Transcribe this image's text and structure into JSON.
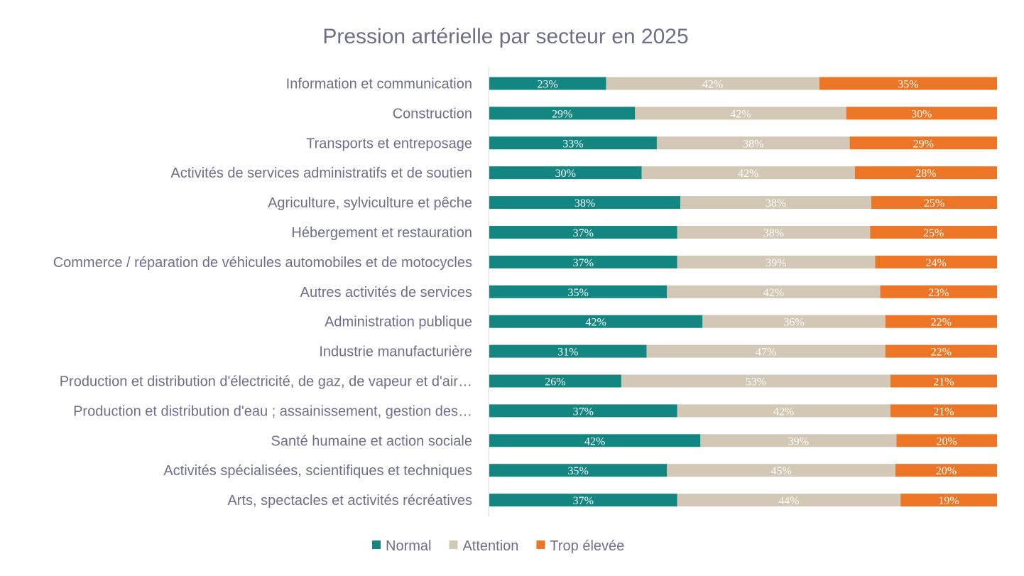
{
  "chart_data": {
    "type": "bar",
    "orientation": "horizontal",
    "stacked": "100%",
    "title": "Pression artérielle par secteur en 2025",
    "categories": [
      "Information et communication",
      "Construction",
      "Transports et entreposage",
      "Activités de services administratifs et de soutien",
      "Agriculture, sylviculture et pêche",
      "Hébergement et restauration",
      "Commerce / réparation de véhicules automobiles et de motocycles",
      "Autres activités de services",
      "Administration publique",
      "Industrie manufacturière",
      "Production et distribution d'électricité, de gaz, de vapeur et d'air…",
      "Production et distribution d'eau ; assainissement, gestion des…",
      "Santé humaine et action sociale",
      "Activités spécialisées, scientifiques et techniques",
      "Arts, spectacles et activités récréatives"
    ],
    "series": [
      {
        "name": "Normal",
        "color": "#138681",
        "values": [
          23,
          29,
          33,
          30,
          38,
          37,
          37,
          35,
          42,
          31,
          26,
          37,
          42,
          35,
          37
        ]
      },
      {
        "name": "Attention",
        "color": "#d3c8b5",
        "values": [
          42,
          42,
          38,
          42,
          38,
          38,
          39,
          42,
          36,
          47,
          53,
          42,
          39,
          45,
          44
        ]
      },
      {
        "name": "Trop élevée",
        "color": "#ec7625",
        "values": [
          35,
          30,
          29,
          28,
          25,
          25,
          24,
          23,
          22,
          22,
          21,
          21,
          20,
          20,
          19
        ]
      }
    ],
    "value_suffix": "%",
    "legend_position": "bottom",
    "grid": false
  }
}
